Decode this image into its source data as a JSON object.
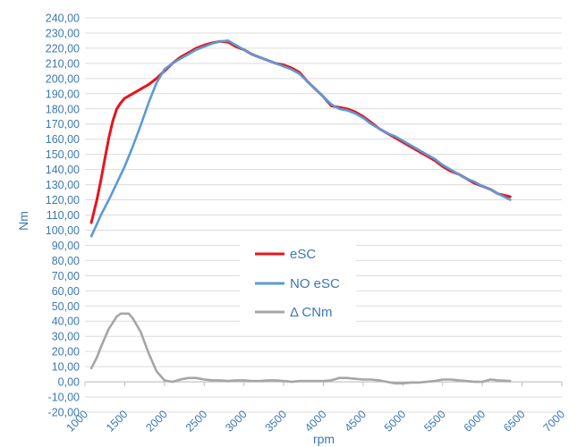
{
  "chart_data": {
    "type": "line",
    "title": "",
    "xlabel": "rpm",
    "ylabel": "Nm",
    "xlim": [
      1000,
      7000
    ],
    "ylim": [
      -20,
      240
    ],
    "x_ticks": [
      1000,
      1500,
      2000,
      2500,
      3000,
      3500,
      4000,
      4500,
      5000,
      5500,
      6000,
      6500,
      7000
    ],
    "y_ticks": [
      -20,
      -10,
      0,
      10,
      20,
      30,
      40,
      50,
      60,
      70,
      80,
      90,
      100,
      110,
      120,
      130,
      140,
      150,
      160,
      170,
      180,
      190,
      200,
      210,
      220,
      230,
      240
    ],
    "y_tick_labels": [
      "-20,00",
      "-10,00",
      "0,00",
      "10,00",
      "20,00",
      "30,00",
      "40,00",
      "50,00",
      "60,00",
      "70,00",
      "80,00",
      "90,00",
      "100,00",
      "110,00",
      "120,00",
      "130,00",
      "140,00",
      "150,00",
      "160,00",
      "170,00",
      "180,00",
      "190,00",
      "200,00",
      "210,00",
      "220,00",
      "230,00",
      "240,00"
    ],
    "grid": "horizontal",
    "legend_position": "center",
    "series": [
      {
        "name": "eSC",
        "color": "#e8141c",
        "x": [
          1080,
          1150,
          1200,
          1250,
          1300,
          1350,
          1400,
          1450,
          1500,
          1600,
          1700,
          1800,
          1900,
          2000,
          2100,
          2200,
          2300,
          2400,
          2500,
          2600,
          2700,
          2800,
          2900,
          3000,
          3100,
          3200,
          3300,
          3400,
          3500,
          3600,
          3700,
          3800,
          3900,
          4000,
          4100,
          4200,
          4300,
          4400,
          4500,
          4600,
          4700,
          4800,
          4900,
          5000,
          5100,
          5200,
          5300,
          5400,
          5500,
          5600,
          5700,
          5800,
          5900,
          6000,
          6100,
          6200,
          6350
        ],
        "values": [
          105,
          120,
          133,
          147,
          161,
          172,
          180,
          184,
          187,
          190,
          193,
          196,
          200,
          205,
          210,
          214,
          217,
          220,
          222,
          223.5,
          224.5,
          224,
          221,
          219,
          216,
          214,
          212,
          210,
          209,
          207,
          204,
          198,
          193,
          188,
          182,
          181,
          180,
          178,
          175,
          171,
          167,
          164,
          161,
          158,
          155,
          152,
          149,
          146,
          142,
          139,
          137,
          134,
          131,
          129,
          127,
          124,
          122
        ]
      },
      {
        "name": "NO eSC",
        "color": "#5b9bd5",
        "x": [
          1080,
          1150,
          1200,
          1300,
          1400,
          1500,
          1600,
          1700,
          1800,
          1900,
          2000,
          2100,
          2200,
          2300,
          2400,
          2500,
          2600,
          2700,
          2800,
          2900,
          3000,
          3100,
          3200,
          3300,
          3400,
          3500,
          3600,
          3700,
          3800,
          3900,
          4000,
          4100,
          4200,
          4300,
          4400,
          4500,
          4600,
          4700,
          4800,
          4900,
          5000,
          5100,
          5200,
          5300,
          5400,
          5500,
          5600,
          5700,
          5800,
          5900,
          6000,
          6100,
          6200,
          6350
        ],
        "values": [
          96,
          104,
          110,
          120,
          131,
          142,
          155,
          169,
          184,
          197,
          206,
          210,
          213,
          216,
          219,
          221,
          223,
          224.5,
          225,
          222,
          219,
          216,
          214,
          212,
          210,
          208,
          206,
          203,
          198,
          193,
          188,
          183,
          180,
          179,
          177,
          174,
          170,
          167,
          164,
          162,
          159,
          156,
          153,
          150,
          147,
          143,
          140,
          137,
          134,
          132,
          129,
          127,
          124,
          120
        ]
      },
      {
        "name": "Δ CNm",
        "color": "#a6a6a6",
        "x": [
          1080,
          1150,
          1200,
          1300,
          1400,
          1450,
          1500,
          1550,
          1600,
          1700,
          1800,
          1900,
          2000,
          2100,
          2200,
          2300,
          2400,
          2500,
          2600,
          2700,
          2800,
          2900,
          3000,
          3100,
          3200,
          3300,
          3400,
          3500,
          3600,
          3700,
          3800,
          3900,
          4000,
          4100,
          4200,
          4300,
          4400,
          4500,
          4600,
          4700,
          4800,
          4900,
          5000,
          5100,
          5200,
          5300,
          5400,
          5500,
          5600,
          5700,
          5800,
          5900,
          6000,
          6100,
          6200,
          6350
        ],
        "values": [
          9,
          16,
          23,
          35,
          43,
          45,
          45,
          45,
          42,
          33,
          19,
          7,
          1,
          0,
          1.5,
          2.5,
          2.5,
          1.5,
          1,
          1,
          0.5,
          1,
          1,
          0.5,
          0.5,
          1,
          1,
          0.5,
          0,
          0.5,
          0.5,
          0.5,
          0.5,
          1,
          2.5,
          2.5,
          2,
          1.5,
          1.5,
          1,
          0,
          -1,
          -1,
          -0.5,
          -0.5,
          0,
          0.5,
          1.5,
          1.5,
          1,
          0.5,
          0,
          0,
          1.5,
          1,
          0.5
        ]
      }
    ]
  }
}
